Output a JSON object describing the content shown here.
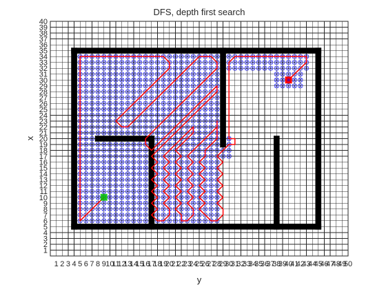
{
  "chart_data": {
    "type": "grid-path",
    "title": "DFS, depth first search",
    "xlabel": "y",
    "ylabel": "x",
    "xlim": [
      0,
      50
    ],
    "ylim": [
      0,
      40
    ],
    "grid": true,
    "x_ticks": [
      1,
      2,
      3,
      4,
      5,
      6,
      7,
      8,
      9,
      10,
      11,
      12,
      13,
      14,
      15,
      16,
      17,
      18,
      19,
      20,
      21,
      22,
      23,
      24,
      25,
      26,
      27,
      28,
      29,
      30,
      31,
      32,
      33,
      34,
      35,
      36,
      37,
      38,
      39,
      40,
      41,
      42,
      43,
      44,
      45,
      46,
      47,
      48,
      49,
      50
    ],
    "y_ticks": [
      1,
      2,
      3,
      4,
      5,
      6,
      7,
      8,
      9,
      10,
      11,
      12,
      13,
      14,
      15,
      16,
      17,
      18,
      19,
      20,
      21,
      22,
      23,
      24,
      25,
      26,
      27,
      28,
      29,
      30,
      31,
      32,
      33,
      34,
      35,
      36,
      37,
      38,
      39,
      40
    ],
    "colors": {
      "obstacle": "#000000",
      "explored": "#0000ff",
      "path": "#ff0000",
      "start": "#00c000",
      "goal": "#ff0000"
    },
    "walls": [
      {
        "x": [
          4,
          45
        ],
        "y": [
          35,
          35
        ]
      },
      {
        "x": [
          4,
          45
        ],
        "y": [
          5,
          5
        ]
      },
      {
        "x": [
          4,
          4
        ],
        "y": [
          5,
          35
        ]
      },
      {
        "x": [
          45,
          45
        ],
        "y": [
          5,
          35
        ]
      },
      {
        "x": [
          29,
          29
        ],
        "y": [
          19,
          35
        ]
      },
      {
        "x": [
          8,
          17
        ],
        "y": [
          20,
          20
        ]
      },
      {
        "x": [
          17,
          17
        ],
        "y": [
          5,
          20
        ]
      },
      {
        "x": [
          38,
          38
        ],
        "y": [
          5,
          20
        ]
      }
    ],
    "explored_regions": [
      {
        "x": [
          5,
          28
        ],
        "y": [
          6,
          34
        ]
      },
      {
        "x": [
          29,
          30
        ],
        "y": [
          17,
          20
        ]
      },
      {
        "x": [
          30,
          43
        ],
        "y": [
          32,
          34
        ]
      },
      {
        "x": [
          38,
          42
        ],
        "y": [
          29,
          31
        ]
      }
    ],
    "path": [
      [
        9,
        10
      ],
      [
        8,
        9
      ],
      [
        7,
        8
      ],
      [
        6,
        7
      ],
      [
        5,
        6
      ],
      [
        5,
        7
      ],
      [
        5,
        8
      ],
      [
        5,
        10
      ],
      [
        5,
        12
      ],
      [
        5,
        14
      ],
      [
        5,
        16
      ],
      [
        5,
        18
      ],
      [
        5,
        20
      ],
      [
        5,
        22
      ],
      [
        5,
        24
      ],
      [
        5,
        26
      ],
      [
        5,
        28
      ],
      [
        5,
        30
      ],
      [
        5,
        32
      ],
      [
        5,
        34
      ],
      [
        6,
        34
      ],
      [
        8,
        34
      ],
      [
        10,
        34
      ],
      [
        12,
        34
      ],
      [
        14,
        34
      ],
      [
        16,
        34
      ],
      [
        18,
        34
      ],
      [
        19,
        34
      ],
      [
        20,
        33
      ],
      [
        20,
        32
      ],
      [
        19,
        31
      ],
      [
        18,
        30
      ],
      [
        17,
        29
      ],
      [
        16,
        28
      ],
      [
        15,
        27
      ],
      [
        14,
        26
      ],
      [
        13,
        25
      ],
      [
        12,
        24
      ],
      [
        11,
        23
      ],
      [
        12,
        22
      ],
      [
        13,
        22
      ],
      [
        14,
        23
      ],
      [
        15,
        24
      ],
      [
        16,
        25
      ],
      [
        17,
        26
      ],
      [
        18,
        27
      ],
      [
        19,
        28
      ],
      [
        20,
        29
      ],
      [
        21,
        30
      ],
      [
        22,
        31
      ],
      [
        23,
        32
      ],
      [
        24,
        33
      ],
      [
        25,
        34
      ],
      [
        26,
        34
      ],
      [
        27,
        34
      ],
      [
        28,
        33
      ],
      [
        28,
        32
      ],
      [
        27,
        31
      ],
      [
        26,
        30
      ],
      [
        25,
        29
      ],
      [
        24,
        28
      ],
      [
        23,
        27
      ],
      [
        22,
        26
      ],
      [
        21,
        25
      ],
      [
        20,
        24
      ],
      [
        19,
        23
      ],
      [
        18,
        22
      ],
      [
        17,
        21
      ],
      [
        16,
        20
      ],
      [
        16,
        19
      ],
      [
        17,
        18
      ],
      [
        18,
        19
      ],
      [
        19,
        20
      ],
      [
        20,
        21
      ],
      [
        21,
        22
      ],
      [
        22,
        23
      ],
      [
        23,
        24
      ],
      [
        24,
        25
      ],
      [
        25,
        26
      ],
      [
        26,
        27
      ],
      [
        27,
        28
      ],
      [
        28,
        29
      ],
      [
        28,
        28
      ],
      [
        27,
        27
      ],
      [
        26,
        26
      ],
      [
        25,
        25
      ],
      [
        24,
        24
      ],
      [
        23,
        23
      ],
      [
        22,
        22
      ],
      [
        21,
        21
      ],
      [
        20,
        20
      ],
      [
        19,
        19
      ],
      [
        18,
        18
      ],
      [
        17,
        17
      ],
      [
        18,
        16
      ],
      [
        17,
        15
      ],
      [
        18,
        14
      ],
      [
        17,
        13
      ],
      [
        18,
        12
      ],
      [
        17,
        11
      ],
      [
        18,
        10
      ],
      [
        17,
        9
      ],
      [
        18,
        8
      ],
      [
        17,
        7
      ],
      [
        18,
        6
      ],
      [
        19,
        6
      ],
      [
        20,
        7
      ],
      [
        20,
        8
      ],
      [
        19,
        9
      ],
      [
        20,
        10
      ],
      [
        19,
        11
      ],
      [
        20,
        12
      ],
      [
        19,
        13
      ],
      [
        20,
        14
      ],
      [
        19,
        15
      ],
      [
        20,
        16
      ],
      [
        19,
        17
      ],
      [
        20,
        18
      ],
      [
        21,
        19
      ],
      [
        22,
        20
      ],
      [
        23,
        21
      ],
      [
        24,
        22
      ],
      [
        24,
        21
      ],
      [
        23,
        20
      ],
      [
        22,
        19
      ],
      [
        21,
        18
      ],
      [
        22,
        17
      ],
      [
        21,
        16
      ],
      [
        22,
        15
      ],
      [
        21,
        14
      ],
      [
        22,
        13
      ],
      [
        21,
        12
      ],
      [
        22,
        11
      ],
      [
        21,
        10
      ],
      [
        22,
        9
      ],
      [
        21,
        8
      ],
      [
        22,
        7
      ],
      [
        22,
        6
      ],
      [
        23,
        6
      ],
      [
        24,
        7
      ],
      [
        24,
        8
      ],
      [
        23,
        9
      ],
      [
        24,
        10
      ],
      [
        23,
        11
      ],
      [
        24,
        12
      ],
      [
        23,
        13
      ],
      [
        24,
        14
      ],
      [
        23,
        15
      ],
      [
        24,
        16
      ],
      [
        23,
        17
      ],
      [
        24,
        18
      ],
      [
        25,
        19
      ],
      [
        26,
        20
      ],
      [
        27,
        21
      ],
      [
        28,
        22
      ],
      [
        28,
        23
      ],
      [
        28,
        22
      ],
      [
        28,
        20
      ],
      [
        27,
        19
      ],
      [
        26,
        18
      ],
      [
        26,
        17
      ],
      [
        25,
        16
      ],
      [
        26,
        15
      ],
      [
        25,
        14
      ],
      [
        26,
        13
      ],
      [
        25,
        12
      ],
      [
        26,
        11
      ],
      [
        25,
        10
      ],
      [
        26,
        9
      ],
      [
        25,
        8
      ],
      [
        26,
        7
      ],
      [
        27,
        6
      ],
      [
        28,
        6
      ],
      [
        29,
        7
      ],
      [
        29,
        8
      ],
      [
        28,
        9
      ],
      [
        29,
        10
      ],
      [
        28,
        11
      ],
      [
        29,
        12
      ],
      [
        28,
        13
      ],
      [
        29,
        14
      ],
      [
        28,
        15
      ],
      [
        29,
        16
      ],
      [
        28,
        17
      ],
      [
        29,
        18
      ],
      [
        30,
        19
      ],
      [
        31,
        19
      ],
      [
        31,
        20
      ],
      [
        30,
        20
      ],
      [
        30,
        22
      ],
      [
        30,
        24
      ],
      [
        30,
        26
      ],
      [
        30,
        28
      ],
      [
        30,
        30
      ],
      [
        30,
        32
      ],
      [
        30,
        33
      ],
      [
        31,
        34
      ],
      [
        32,
        34
      ],
      [
        34,
        34
      ],
      [
        36,
        34
      ],
      [
        38,
        34
      ],
      [
        40,
        34
      ],
      [
        42,
        34
      ],
      [
        43,
        34
      ],
      [
        43,
        33
      ],
      [
        42,
        32
      ],
      [
        41,
        31
      ],
      [
        40,
        30
      ]
    ],
    "start": [
      9,
      10
    ],
    "goal": [
      40,
      30
    ]
  }
}
